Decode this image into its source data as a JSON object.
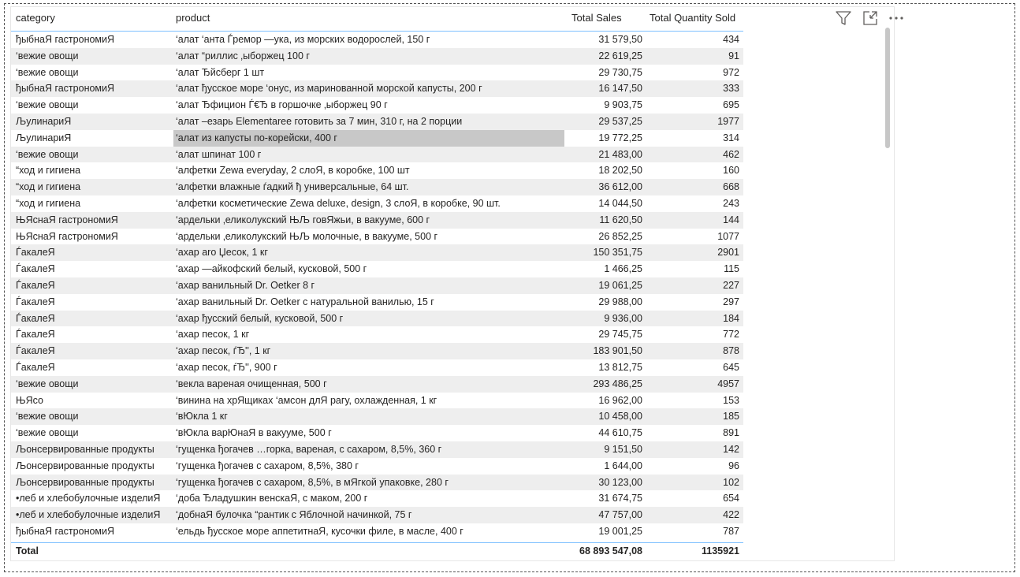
{
  "table": {
    "columns": {
      "category": "category",
      "product": "product",
      "sales": "Total Sales",
      "qty": "Total Quantity Sold"
    },
    "rows": [
      {
        "category": "ђыбнаЯ гастрономиЯ",
        "product": "‘алат ‘анта Ѓремор —ука, из морских водорослей, 150 г",
        "sales": "31 579,50",
        "qty": "434"
      },
      {
        "category": "‘вежие овощи",
        "product": "‘алат “риллис ‚ыборжец 100 г",
        "sales": "22 619,25",
        "qty": "91"
      },
      {
        "category": "‘вежие овощи",
        "product": "‘алат Ђйсберг 1 шт",
        "sales": "29 730,75",
        "qty": "972"
      },
      {
        "category": "ђыбнаЯ гастрономиЯ",
        "product": "‘алат ђусское море ‘онус, из маринованной морской капусты, 200 г",
        "sales": "16 147,50",
        "qty": "333"
      },
      {
        "category": "‘вежие овощи",
        "product": "‘алат Ђфицион Ѓ€Ђ в горшочке ‚ыборжец 90 г",
        "sales": "9 903,75",
        "qty": "695"
      },
      {
        "category": "ЉулинариЯ",
        "product": "‘алат –езарь Elementaree готовить за 7 мин, 310 г, на 2 порции",
        "sales": "29 537,25",
        "qty": "1977"
      },
      {
        "category": "ЉулинариЯ",
        "product": "‘алат из капусты по-корейски, 400 г",
        "sales": "19 772,25",
        "qty": "314"
      },
      {
        "category": "‘вежие овощи",
        "product": "‘алат шпинат 100 г",
        "sales": "21 483,00",
        "qty": "462"
      },
      {
        "category": "“ход и гигиена",
        "product": "‘алфетки Zewa everyday, 2 слоЯ, в коробке, 100 шт",
        "sales": "18 202,50",
        "qty": "160"
      },
      {
        "category": "“ход и гигиена",
        "product": "‘алфетки влажные ѓадкий ђ универсальные, 64 шт.",
        "sales": "36 612,00",
        "qty": "668"
      },
      {
        "category": "“ход и гигиена",
        "product": "‘алфетки косметические Zewa deluxe, design, 3 слоЯ, в коробке, 90 шт.",
        "sales": "14 044,50",
        "qty": "243"
      },
      {
        "category": "ЊЯснаЯ гастрономиЯ",
        "product": "‘ардельки ‚еликолукский ЊЉ говЯжьи, в вакууме, 600 г",
        "sales": "11 620,50",
        "qty": "144"
      },
      {
        "category": "ЊЯснаЯ гастрономиЯ",
        "product": "‘ардельки ‚еликолукский ЊЉ молочные, в вакууме, 500 г",
        "sales": "26 852,25",
        "qty": "1077"
      },
      {
        "category": "ЃакалеЯ",
        "product": "‘ахар aro Џесок, 1 кг",
        "sales": "150 351,75",
        "qty": "2901"
      },
      {
        "category": "ЃакалеЯ",
        "product": "‘ахар —айкофский белый, кусковой, 500 г",
        "sales": "1 466,25",
        "qty": "115"
      },
      {
        "category": "ЃакалеЯ",
        "product": "‘ахар ванильный Dr. Oetker 8 г",
        "sales": "19 061,25",
        "qty": "227"
      },
      {
        "category": "ЃакалеЯ",
        "product": "‘ахар ванильный Dr. Oetker с натуральной ванилью, 15 г",
        "sales": "29 988,00",
        "qty": "297"
      },
      {
        "category": "ЃакалеЯ",
        "product": "‘ахар ђусский белый, кусковой, 500 г",
        "sales": "9 936,00",
        "qty": "184"
      },
      {
        "category": "ЃакалеЯ",
        "product": "‘ахар песок, 1 кг",
        "sales": "29 745,75",
        "qty": "772"
      },
      {
        "category": "ЃакалеЯ",
        "product": "‘ахар песок, ѓЂ'', 1 кг",
        "sales": "183 901,50",
        "qty": "878"
      },
      {
        "category": "ЃакалеЯ",
        "product": "‘ахар песок, ѓЂ'', 900 г",
        "sales": "13 812,75",
        "qty": "645"
      },
      {
        "category": "‘вежие овощи",
        "product": "‘векла вареная очищенная, 500 г",
        "sales": "293 486,25",
        "qty": "4957"
      },
      {
        "category": "ЊЯсо",
        "product": "‘винина на хрЯщиках ‘амсон длЯ рагу, охлажденная, 1 кг",
        "sales": "16 962,00",
        "qty": "153"
      },
      {
        "category": "‘вежие овощи",
        "product": "‘вЮкла 1 кг",
        "sales": "10 458,00",
        "qty": "185"
      },
      {
        "category": "‘вежие овощи",
        "product": "‘вЮкла варЮнаЯ в вакууме, 500 г",
        "sales": "44 610,75",
        "qty": "891"
      },
      {
        "category": "Љонсервированные продукты",
        "product": "‘гущенка ђогачев …горка, вареная, с сахаром, 8,5%, 360 г",
        "sales": "9 151,50",
        "qty": "142"
      },
      {
        "category": "Љонсервированные продукты",
        "product": "‘гущенка ђогачев с сахаром, 8,5%, 380 г",
        "sales": "1 644,00",
        "qty": "96"
      },
      {
        "category": "Љонсервированные продукты",
        "product": "‘гущенка ђогачев с сахаром, 8,5%, в мЯгкой упаковке, 280 г",
        "sales": "30 123,00",
        "qty": "102"
      },
      {
        "category": "•леб и хлебобулочные изделиЯ",
        "product": "‘доба Ђладушкин венскаЯ, с маком, 200 г",
        "sales": "31 674,75",
        "qty": "654"
      },
      {
        "category": "•леб и хлебобулочные изделиЯ",
        "product": "‘добнаЯ булочка “рантик с Яблочной начинкой, 75 г",
        "sales": "47 757,00",
        "qty": "422"
      },
      {
        "category": "ђыбнаЯ гастрономиЯ",
        "product": "‘ельдь ђусское море аппетитнаЯ, кусочки филе, в масле, 400 г",
        "sales": "19 001,25",
        "qty": "787"
      }
    ],
    "total": {
      "label": "Total",
      "sales": "68 893 547,08",
      "qty": "1135921"
    }
  },
  "header_icons": [
    "filter-icon",
    "focus-mode-icon",
    "more-options-icon"
  ],
  "colors": {
    "alt_row": "#eeeeee",
    "selected_cell": "#c8c8c8",
    "rule": "#118DFF"
  }
}
